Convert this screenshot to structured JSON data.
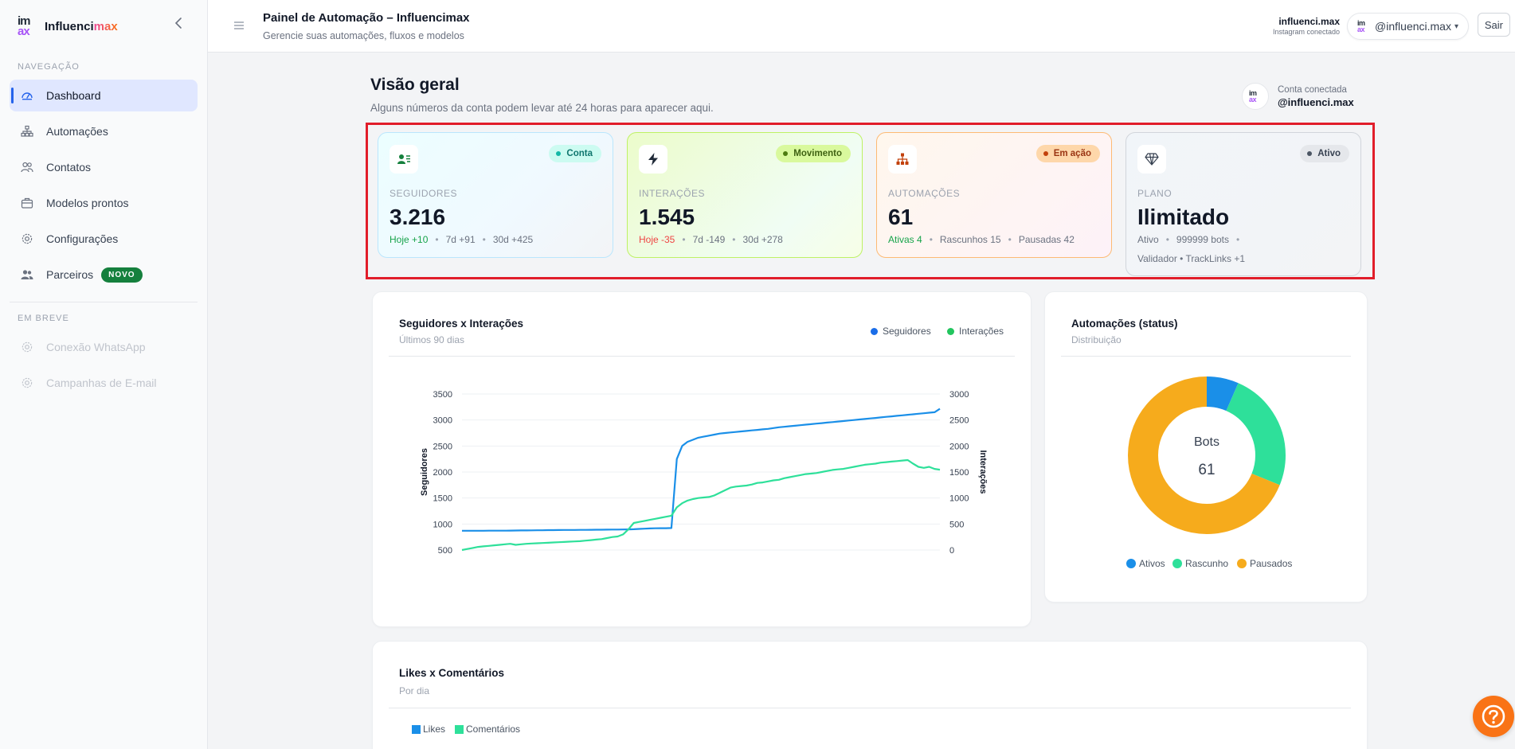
{
  "brand": {
    "logo_line1": "im",
    "logo_line2": "ax",
    "name_part1": "Influenci",
    "name_part2": "max"
  },
  "sidebar": {
    "nav_label": "NAVEGAÇÃO",
    "items": [
      {
        "label": "Dashboard",
        "icon": "gauge-icon",
        "active": true
      },
      {
        "label": "Automações",
        "icon": "sitemap-icon"
      },
      {
        "label": "Contatos",
        "icon": "users-icon"
      },
      {
        "label": "Modelos prontos",
        "icon": "briefcase-icon"
      },
      {
        "label": "Configurações",
        "icon": "gear-icon"
      },
      {
        "label": "Parceiros",
        "icon": "people-icon",
        "badge": "NOVO"
      }
    ],
    "soon_label": "EM BREVE",
    "soon_items": [
      {
        "label": "Conexão WhatsApp",
        "icon": "gear-icon"
      },
      {
        "label": "Campanhas de E-mail",
        "icon": "gear-icon"
      }
    ]
  },
  "topbar": {
    "title": "Painel de Automação – Influencimax",
    "subtitle": "Gerencie suas automações, fluxos e modelos",
    "account_name": "influenci.max",
    "account_status": "Instagram conectado",
    "account_select": "@influenci.max",
    "logout": "Sair"
  },
  "overview": {
    "title": "Visão geral",
    "subtitle": "Alguns números da conta podem levar até 24 horas para aparecer aqui.",
    "connected_label": "Conta conectada",
    "connected_handle": "@influenci.max"
  },
  "stats": {
    "followers": {
      "pill": "Conta",
      "label": "SEGUIDORES",
      "value": "3.216",
      "today": "Hoje +10",
      "d7": "7d +91",
      "d30": "30d +425"
    },
    "interactions": {
      "pill": "Movimento",
      "label": "INTERAÇÕES",
      "value": "1.545",
      "today": "Hoje -35",
      "d7": "7d -149",
      "d30": "30d +278"
    },
    "automations": {
      "pill": "Em ação",
      "label": "AUTOMAÇÕES",
      "value": "61",
      "active": "Ativas 4",
      "drafts": "Rascunhos 15",
      "paused": "Pausadas 42"
    },
    "plan": {
      "pill": "Ativo",
      "label": "PLANO",
      "value": "Ilimitado",
      "status": "Ativo",
      "bots": "999999 bots",
      "extras": "Validador • TrackLinks +1"
    }
  },
  "panels": {
    "line": {
      "title": "Seguidores x Interações",
      "subtitle": "Últimos 90 dias",
      "legend_a": "Seguidores",
      "legend_b": "Interações",
      "ylabel_left": "Seguidores",
      "ylabel_right": "Interações"
    },
    "donut": {
      "title": "Automações (status)",
      "subtitle": "Distribuição",
      "center_label": "Bots",
      "center_value": "61",
      "legend": [
        "Ativos",
        "Rascunho",
        "Pausados"
      ]
    },
    "bars": {
      "title": "Likes x Comentários",
      "subtitle": "Por dia",
      "legend_a": "Likes",
      "legend_b": "Comentários"
    }
  },
  "colors": {
    "blue": "#1a8fe8",
    "green": "#2ee09a",
    "orange": "#f6ab1c",
    "accent": "#2563eb",
    "help": "#f97316"
  },
  "chart_data": [
    {
      "type": "line",
      "title": "Seguidores x Interações",
      "subtitle": "Últimos 90 dias",
      "xlabel": "",
      "ylabel": "Seguidores",
      "y2label": "Interações",
      "ylim": [
        500,
        3500
      ],
      "y2lim": [
        0,
        3000
      ],
      "yticks": [
        500,
        1000,
        1500,
        2000,
        2500,
        3000,
        3500
      ],
      "y2ticks": [
        0,
        500,
        1000,
        1500,
        2000,
        2500,
        3000
      ],
      "grid": true,
      "legend": "top-right",
      "series": [
        {
          "name": "Seguidores",
          "axis": "left",
          "color": "#1a8fe8",
          "values": [
            870,
            870,
            870,
            870,
            870,
            872,
            872,
            872,
            872,
            874,
            875,
            876,
            876,
            878,
            880,
            880,
            882,
            882,
            884,
            885,
            885,
            886,
            887,
            888,
            889,
            890,
            890,
            892,
            893,
            894,
            895,
            897,
            900,
            905,
            910,
            915,
            918,
            920,
            920,
            922,
            2250,
            2500,
            2580,
            2620,
            2660,
            2680,
            2700,
            2720,
            2740,
            2750,
            2760,
            2770,
            2780,
            2790,
            2800,
            2810,
            2820,
            2830,
            2845,
            2860,
            2870,
            2880,
            2890,
            2900,
            2910,
            2920,
            2930,
            2940,
            2950,
            2960,
            2970,
            2980,
            2990,
            3000,
            3010,
            3020,
            3030,
            3040,
            3050,
            3060,
            3070,
            3080,
            3090,
            3100,
            3110,
            3120,
            3130,
            3140,
            3150,
            3216
          ]
        },
        {
          "name": "Interações",
          "axis": "right",
          "color": "#2ee09a",
          "values": [
            0,
            20,
            40,
            60,
            70,
            80,
            90,
            100,
            110,
            120,
            100,
            110,
            120,
            125,
            130,
            135,
            140,
            145,
            150,
            155,
            160,
            165,
            170,
            180,
            190,
            200,
            210,
            230,
            250,
            260,
            300,
            400,
            520,
            540,
            560,
            580,
            600,
            620,
            640,
            660,
            820,
            900,
            950,
            980,
            1000,
            1010,
            1020,
            1050,
            1100,
            1150,
            1200,
            1220,
            1230,
            1240,
            1260,
            1290,
            1300,
            1320,
            1340,
            1350,
            1380,
            1400,
            1420,
            1440,
            1460,
            1470,
            1480,
            1500,
            1520,
            1540,
            1550,
            1560,
            1580,
            1600,
            1620,
            1640,
            1650,
            1660,
            1680,
            1690,
            1700,
            1710,
            1720,
            1730,
            1660,
            1600,
            1580,
            1600,
            1560,
            1545
          ]
        }
      ]
    },
    {
      "type": "pie",
      "title": "Automações (status)",
      "subtitle": "Distribuição",
      "categories": [
        "Ativos",
        "Rascunho",
        "Pausados"
      ],
      "values": [
        4,
        15,
        42
      ],
      "colors": [
        "#1a8fe8",
        "#2ee09a",
        "#f6ab1c"
      ],
      "center_label": "Bots",
      "center_value": 61,
      "legend": "bottom"
    },
    {
      "type": "bar",
      "title": "Likes x Comentários",
      "subtitle": "Por dia",
      "series": [
        {
          "name": "Likes",
          "color": "#1a8fe8"
        },
        {
          "name": "Comentários",
          "color": "#2ee09a"
        }
      ],
      "legend": "top-left"
    }
  ]
}
